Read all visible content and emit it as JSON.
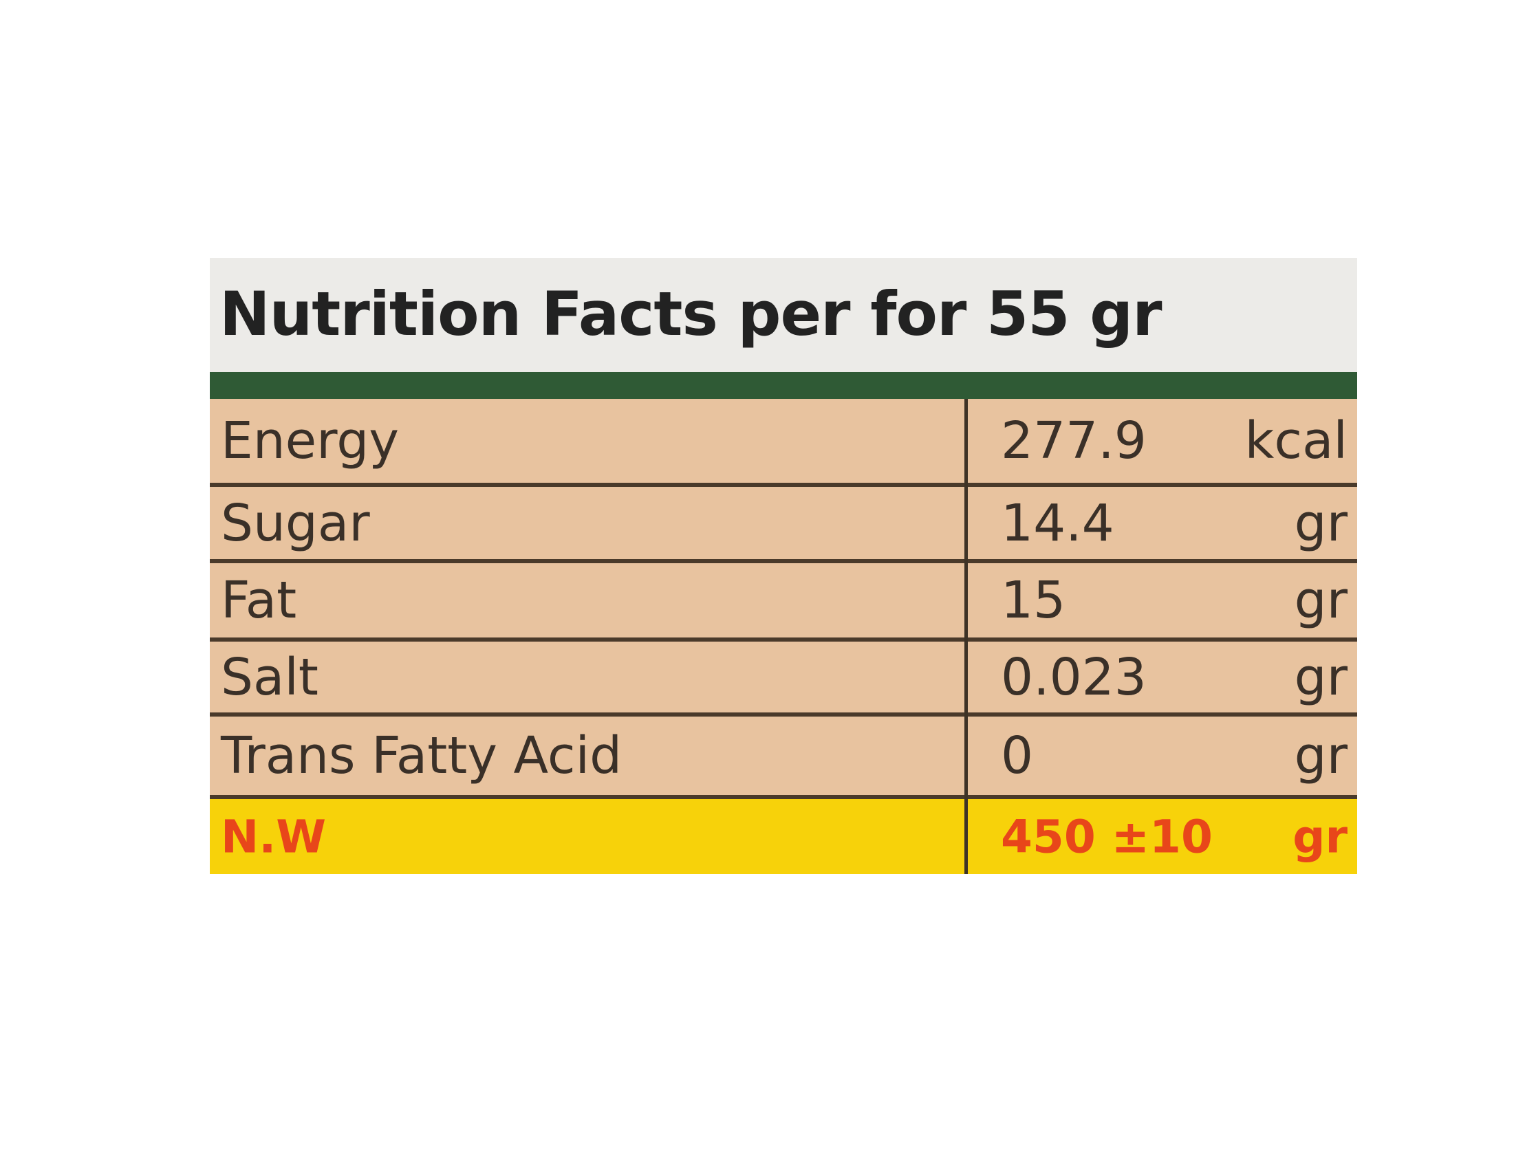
{
  "header": {
    "title": "Nutrition Facts per for 55 gr"
  },
  "table": {
    "rows": [
      [
        "Energy",
        "277.9",
        "kcal"
      ],
      [
        "Sugar",
        "14.4",
        "gr"
      ],
      [
        "Fat",
        "15",
        "gr"
      ],
      [
        "Salt",
        "0.023",
        "gr"
      ],
      [
        "Trans Fatty Acid",
        "0",
        "gr"
      ],
      [
        "N.W",
        "450 ±10",
        "gr"
      ]
    ]
  }
}
